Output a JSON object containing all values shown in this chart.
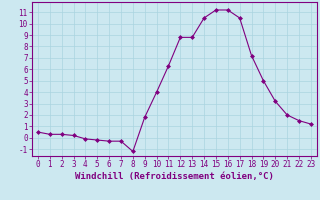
{
  "x": [
    0,
    1,
    2,
    3,
    4,
    5,
    6,
    7,
    8,
    9,
    10,
    11,
    12,
    13,
    14,
    15,
    16,
    17,
    18,
    19,
    20,
    21,
    22,
    23
  ],
  "y": [
    0.5,
    0.3,
    0.3,
    0.2,
    -0.1,
    -0.2,
    -0.3,
    -0.3,
    -1.2,
    1.8,
    4.0,
    6.3,
    8.8,
    8.8,
    10.5,
    11.2,
    11.2,
    10.5,
    7.2,
    5.0,
    3.2,
    2.0,
    1.5,
    1.2
  ],
  "line_color": "#800080",
  "marker": "D",
  "marker_size": 2,
  "background_color": "#cce8f0",
  "grid_color": "#aad4e0",
  "xlabel": "Windchill (Refroidissement éolien,°C)",
  "xlabel_fontsize": 6.5,
  "ylabel_ticks": [
    -1,
    0,
    1,
    2,
    3,
    4,
    5,
    6,
    7,
    8,
    9,
    10,
    11
  ],
  "xlim": [
    -0.5,
    23.5
  ],
  "ylim": [
    -1.6,
    11.9
  ],
  "tick_fontsize": 5.5,
  "linewidth": 0.8
}
